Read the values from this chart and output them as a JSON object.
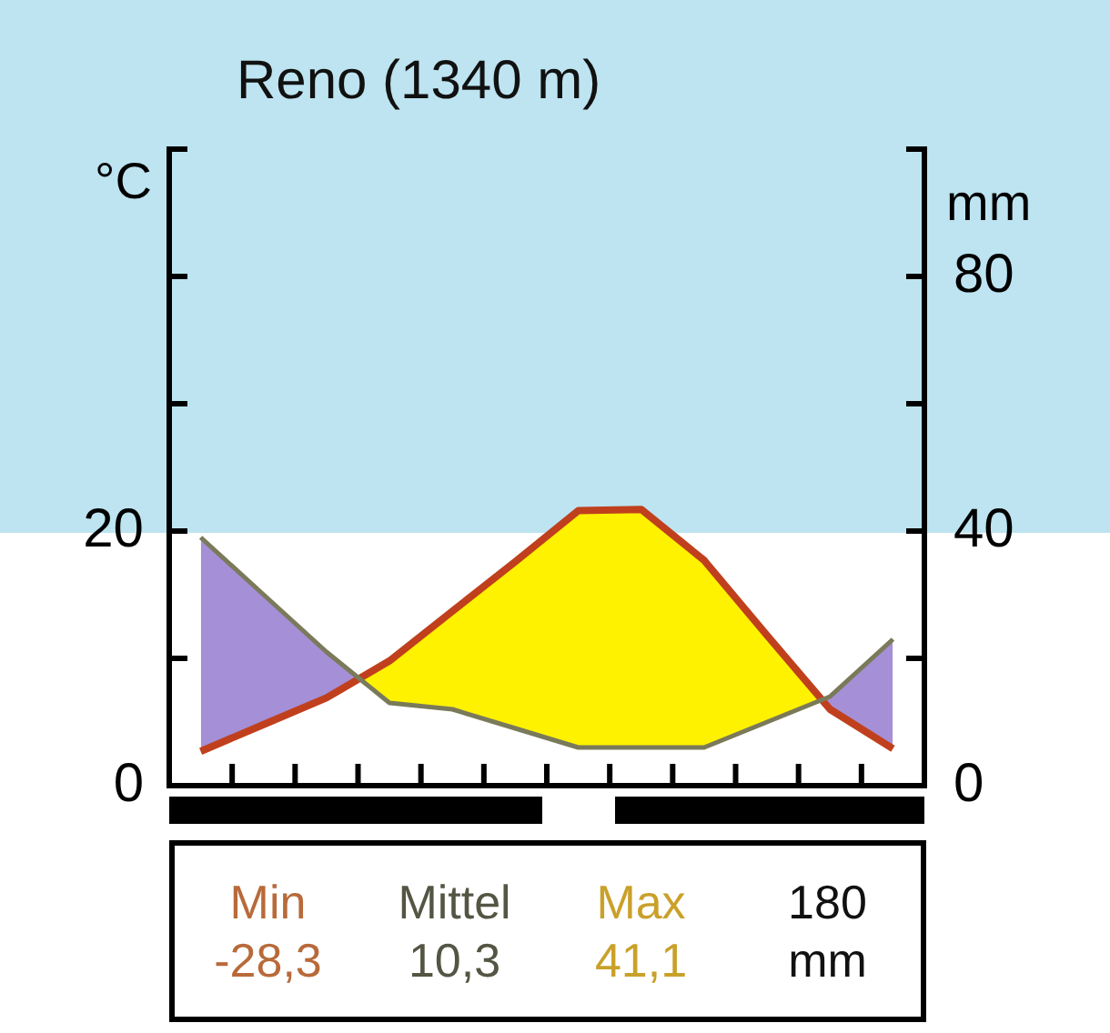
{
  "chart_data": {
    "type": "line",
    "title": "Reno (1340 m)",
    "ylabel": "°C",
    "y2label": "mm",
    "categories": [
      null,
      null,
      null,
      null,
      null,
      null,
      null,
      null,
      null,
      null,
      null,
      null
    ],
    "series": [
      {
        "color": "#c0401e",
        "values": [
          2.7,
          4.8,
          6.9,
          9.8,
          13.7,
          17.6,
          21.6,
          21.7,
          17.7,
          11.8,
          6.0,
          2.9
        ]
      },
      {
        "color": "#7a7a5a",
        "axis": "y2",
        "values": [
          39,
          30,
          21,
          13,
          12,
          9,
          6,
          6,
          6,
          10,
          14,
          23
        ]
      }
    ],
    "ylim": [
      0,
      50
    ],
    "yticks": [
      0,
      {
        "value": 10,
        "label": null
      },
      20,
      {
        "value": 30,
        "label": null
      },
      {
        "value": 40,
        "label": null
      },
      {
        "value": 50,
        "label": null
      }
    ],
    "y2lim": [
      0,
      100
    ],
    "y2ticks": [
      0,
      {
        "value": 20,
        "label": null
      },
      40,
      {
        "value": 60,
        "label": null
      },
      80,
      {
        "value": 100,
        "label": null
      }
    ],
    "tick_labels": "y",
    "annotations": [
      "Min",
      "Mittel",
      "Max",
      "180",
      "-28,3",
      "10,3",
      "41,1",
      "mm"
    ]
  }
}
